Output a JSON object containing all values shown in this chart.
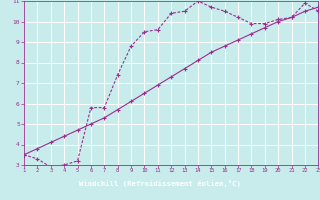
{
  "xlabel": "Windchill (Refroidissement éolien,°C)",
  "xlim": [
    1,
    23
  ],
  "ylim": [
    3,
    11
  ],
  "xticks": [
    1,
    2,
    3,
    4,
    5,
    6,
    7,
    8,
    9,
    10,
    11,
    12,
    13,
    14,
    15,
    16,
    17,
    18,
    19,
    20,
    21,
    22,
    23
  ],
  "yticks": [
    3,
    4,
    5,
    6,
    7,
    8,
    9,
    10,
    11
  ],
  "bg_color": "#c8ecec",
  "line_color": "#9b2d8e",
  "bar_bg": "#7b1c82",
  "grid_color": "#ffffff",
  "line1_x": [
    1,
    2,
    3,
    4,
    5,
    6,
    7,
    8,
    9,
    10,
    11,
    12,
    13,
    14,
    15,
    16,
    17,
    18,
    19,
    20,
    21,
    22,
    23
  ],
  "line1_y": [
    3.5,
    3.8,
    4.1,
    4.4,
    4.7,
    5.0,
    5.3,
    5.7,
    6.1,
    6.5,
    6.9,
    7.3,
    7.7,
    8.1,
    8.5,
    8.8,
    9.1,
    9.4,
    9.7,
    10.0,
    10.2,
    10.5,
    10.7
  ],
  "line2_x": [
    1,
    2,
    3,
    4,
    5,
    6,
    7,
    8,
    9,
    10,
    11,
    12,
    13,
    14,
    15,
    16,
    17,
    18,
    19,
    20,
    21,
    22,
    23
  ],
  "line2_y": [
    3.5,
    3.3,
    2.9,
    3.0,
    3.2,
    5.8,
    5.8,
    7.4,
    8.8,
    9.5,
    9.6,
    10.4,
    10.5,
    11.0,
    10.7,
    10.5,
    10.2,
    9.9,
    9.9,
    10.1,
    10.2,
    10.9,
    10.5
  ]
}
